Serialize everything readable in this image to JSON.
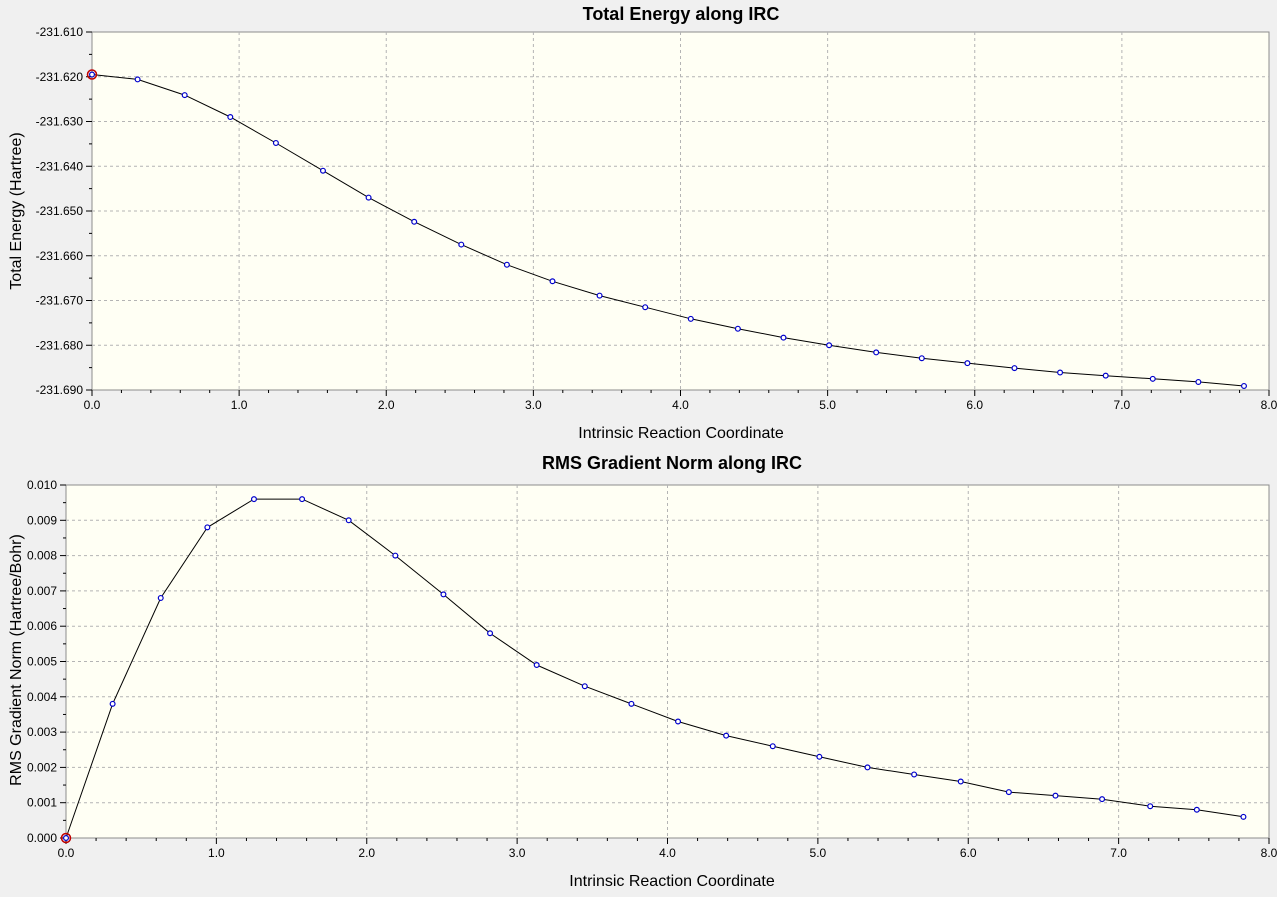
{
  "chart_data": [
    {
      "type": "line",
      "title": "Total Energy along IRC",
      "xlabel": "Intrinsic Reaction Coordinate",
      "ylabel": "Total Energy (Hartree)",
      "xlim": [
        0.0,
        8.0
      ],
      "ylim": [
        -231.69,
        -231.61
      ],
      "xticks": [
        "0.0",
        "1.0",
        "2.0",
        "3.0",
        "4.0",
        "5.0",
        "6.0",
        "7.0",
        "8.0"
      ],
      "yticks": [
        "-231.610",
        "-231.620",
        "-231.630",
        "-231.640",
        "-231.650",
        "-231.660",
        "-231.670",
        "-231.680",
        "-231.690"
      ],
      "grid": true,
      "line_color": "#000000",
      "marker_color": "#0000cc",
      "highlight_color": "#c00000",
      "highlight_index": 0,
      "x": [
        0.0,
        0.31,
        0.63,
        0.94,
        1.25,
        1.57,
        1.88,
        2.19,
        2.51,
        2.82,
        3.13,
        3.45,
        3.76,
        4.07,
        4.39,
        4.7,
        5.01,
        5.33,
        5.64,
        5.95,
        6.27,
        6.58,
        6.89,
        7.21,
        7.52,
        7.83
      ],
      "y": [
        -231.6195,
        -231.6206,
        -231.6241,
        -231.629,
        -231.6348,
        -231.641,
        -231.647,
        -231.6524,
        -231.6575,
        -231.662,
        -231.6657,
        -231.6689,
        -231.6715,
        -231.6741,
        -231.6763,
        -231.6783,
        -231.68,
        -231.6816,
        -231.6829,
        -231.684,
        -231.6851,
        -231.6861,
        -231.6868,
        -231.6875,
        -231.6882,
        -231.6891
      ]
    },
    {
      "type": "line",
      "title": "RMS Gradient Norm along IRC",
      "xlabel": "Intrinsic Reaction Coordinate",
      "ylabel": "RMS Gradient Norm (Hartree/Bohr)",
      "xlim": [
        0.0,
        8.0
      ],
      "ylim": [
        0.0,
        0.01
      ],
      "xticks": [
        "0.0",
        "1.0",
        "2.0",
        "3.0",
        "4.0",
        "5.0",
        "6.0",
        "7.0",
        "8.0"
      ],
      "yticks": [
        "0.010",
        "0.009",
        "0.008",
        "0.007",
        "0.006",
        "0.005",
        "0.004",
        "0.003",
        "0.002",
        "0.001",
        "0.000"
      ],
      "grid": true,
      "line_color": "#000000",
      "marker_color": "#0000cc",
      "highlight_color": "#c00000",
      "highlight_index": 0,
      "x": [
        0.0,
        0.31,
        0.63,
        0.94,
        1.25,
        1.57,
        1.88,
        2.19,
        2.51,
        2.82,
        3.13,
        3.45,
        3.76,
        4.07,
        4.39,
        4.7,
        5.01,
        5.33,
        5.64,
        5.95,
        6.27,
        6.58,
        6.89,
        7.21,
        7.52,
        7.83
      ],
      "y": [
        0.0,
        0.0038,
        0.0068,
        0.0088,
        0.0096,
        0.0096,
        0.009,
        0.008,
        0.0069,
        0.0058,
        0.0049,
        0.0043,
        0.0038,
        0.0033,
        0.0029,
        0.0026,
        0.0023,
        0.002,
        0.0018,
        0.0016,
        0.0013,
        0.0012,
        0.0011,
        0.0009,
        0.0008,
        0.0006
      ]
    }
  ]
}
